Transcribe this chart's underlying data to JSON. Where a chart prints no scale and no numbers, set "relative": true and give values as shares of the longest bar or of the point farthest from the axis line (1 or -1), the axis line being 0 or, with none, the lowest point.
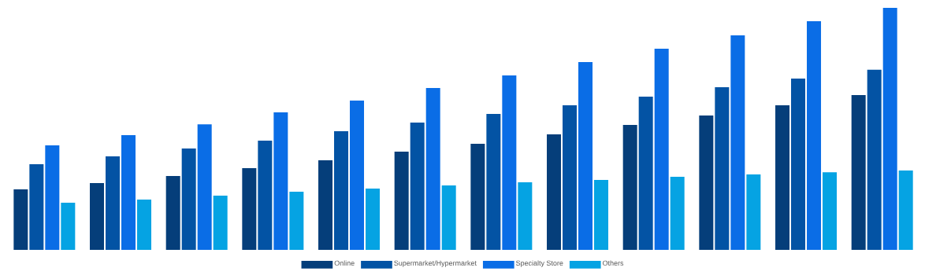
{
  "chart_data": {
    "type": "bar",
    "relative": true,
    "legend": "bottom",
    "categories": [
      null,
      null,
      null,
      null,
      null,
      null,
      null,
      null,
      null,
      null,
      null,
      null
    ],
    "series": [
      {
        "name": "Online",
        "color": "#053e7a",
        "values": [
          0.25,
          0.276,
          0.305,
          0.338,
          0.37,
          0.406,
          0.438,
          0.477,
          0.516,
          0.555,
          0.597,
          0.64
        ]
      },
      {
        "name": "Supermarket/Hypermarket",
        "color": "#0353a4",
        "values": [
          0.354,
          0.386,
          0.419,
          0.451,
          0.49,
          0.526,
          0.562,
          0.597,
          0.633,
          0.672,
          0.708,
          0.744
        ]
      },
      {
        "name": "Specialty Store",
        "color": "#0a6de6",
        "values": [
          0.432,
          0.474,
          0.519,
          0.568,
          0.617,
          0.669,
          0.721,
          0.776,
          0.831,
          0.886,
          0.945,
          1
        ]
      },
      {
        "name": "Others",
        "color": "#05a3e3",
        "values": [
          0.195,
          0.208,
          0.224,
          0.24,
          0.253,
          0.266,
          0.279,
          0.289,
          0.302,
          0.312,
          0.321,
          0.328
        ]
      }
    ]
  }
}
